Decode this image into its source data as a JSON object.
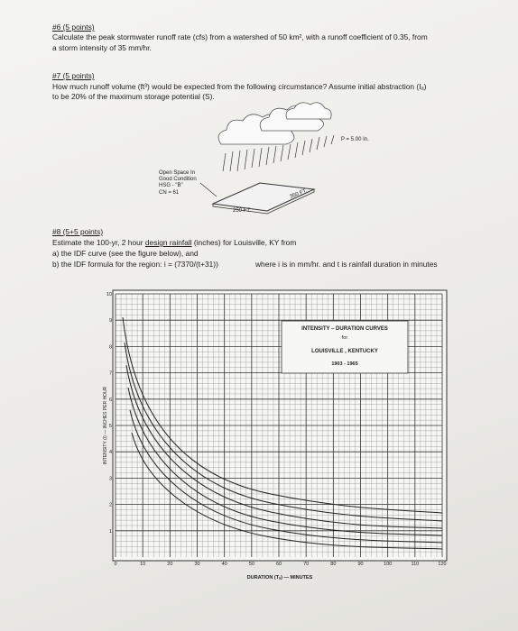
{
  "q6": {
    "heading": "#6 (5 points)",
    "lines": [
      "Calculate the peak stormwater runoff rate (cfs) from a watershed of 50 km², with a runoff coefficient of 0.35, from",
      "a storm intensity of 35 mm/hr."
    ]
  },
  "q7": {
    "heading": "#7 (5 points)",
    "lines": [
      "How much runoff volume (ft³) would be expected from the following circumstance? Assume initial abstraction (Iₐ)",
      "to be 20% of the maximum storage potential (S)."
    ],
    "diagram": {
      "precip": "P = 5.00 In.",
      "land": [
        "Open Space In",
        "Good Condition",
        "HSG - \"B\"",
        "CN = 61"
      ],
      "width": "250 FT.",
      "length": "350 FT."
    }
  },
  "q8": {
    "heading": "#8 (5+5 points)",
    "line1": [
      "Estimate the 100-yr, 2 hour ",
      "design rainfall",
      " (inches) for Louisville, KY from"
    ],
    "line2": "a) the IDF curve (see the figure below), and",
    "line3": "b) the IDF formula for the region: i = (7370/(t+31))",
    "line3b": "where i is in mm/hr. and  t is rainfall duration in minutes"
  },
  "figure": {
    "legend": [
      "INTENSITY – DURATION CURVES",
      "for",
      "LOUISVILLE , KENTUCKY",
      "1903 - 1965"
    ],
    "x_label": "DURATION (Tₐ) — MINUTES",
    "y_label": "INTENSITY (I) — INCHES PER HOUR",
    "xlim": [
      0,
      120
    ],
    "ylim": [
      0,
      10
    ],
    "xticks": [
      0,
      10,
      20,
      30,
      40,
      50,
      60,
      70,
      80,
      90,
      100,
      110,
      120
    ],
    "yticks": [
      1,
      2,
      3,
      4,
      5,
      6,
      7,
      8,
      9,
      10
    ]
  }
}
